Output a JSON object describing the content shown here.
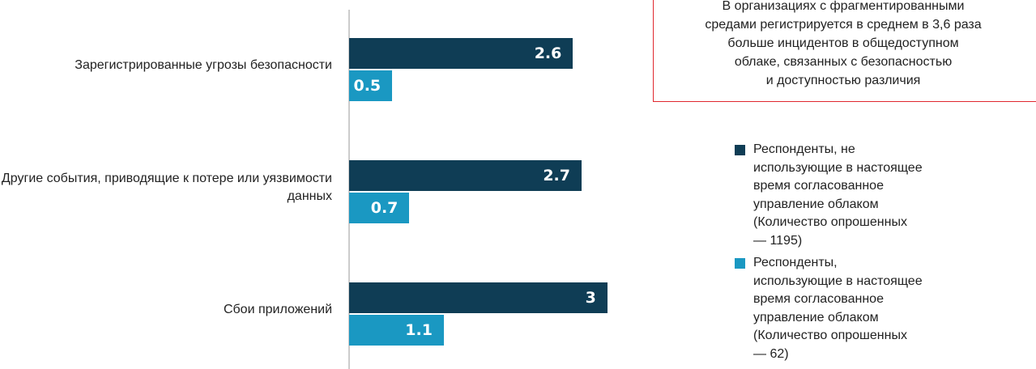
{
  "chart_data": {
    "type": "bar",
    "orientation": "horizontal",
    "categories": [
      "Зарегистрированные угрозы безопасности",
      "Другие события, приводящие к потере или уязвимости данных",
      "Сбои приложений"
    ],
    "series": [
      {
        "name": "Респонденты, не использующие в настоящее время согласованное управление облаком (Количество опрошенных — 1195)",
        "color": "#0f3d55",
        "values": [
          2.6,
          2.7,
          3
        ]
      },
      {
        "name": "Респонденты, использующие в настоящее время согласованное управление облаком (Количество опрошенных — 62)",
        "color": "#1a98c2",
        "values": [
          0.5,
          0.7,
          1.1
        ]
      }
    ],
    "annotation": [
      "В организациях с фрагментированными",
      "средами регистрируется в среднем в 3,6 раза",
      "больше инцидентов в общедоступном",
      "облаке, связанных с безопасностью",
      "и доступностью различия"
    ],
    "annotation_color": "#e0282e"
  }
}
